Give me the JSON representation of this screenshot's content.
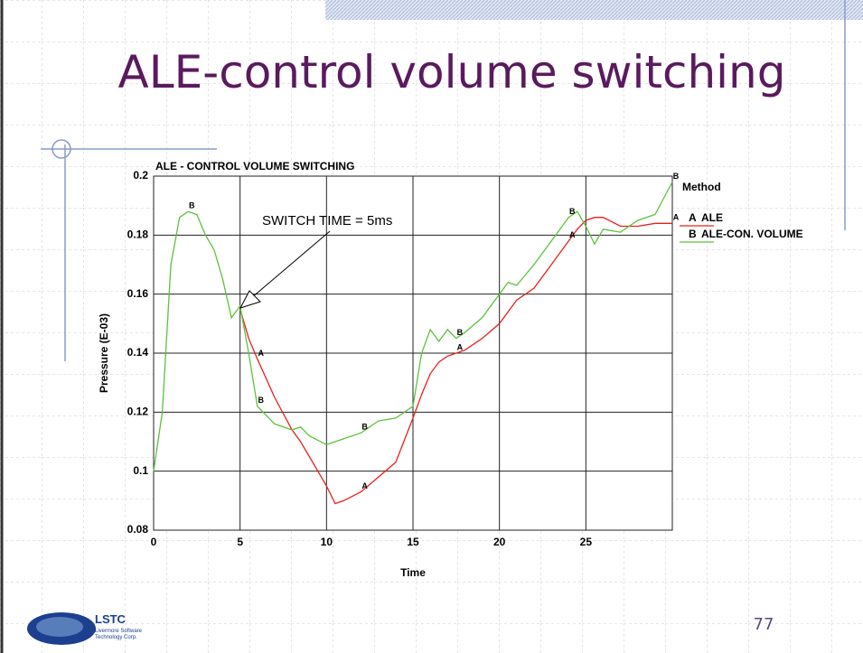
{
  "slide": {
    "title": "ALE-control volume switching",
    "page_number": "77",
    "logo": "LSTC",
    "logo_subtitle": [
      "Livermore Software",
      "Technology Corp."
    ]
  },
  "chart_data": {
    "type": "line",
    "title": "ALE - CONTROL VOLUME SWITCHING",
    "x_label": "Time",
    "y_label": "Pressure (E-03)",
    "legend_title": "Method",
    "annotation": "SWITCH TIME = 5ms",
    "x": [
      0,
      0.5,
      1,
      1.5,
      2,
      2.5,
      3,
      3.5,
      4,
      4.5,
      5,
      5.5,
      6,
      7,
      8,
      8.5,
      9,
      10,
      10.5,
      11,
      12,
      13,
      14,
      15,
      15.5,
      16,
      16.5,
      17,
      17.5,
      18,
      19,
      20,
      20.5,
      21,
      22,
      23,
      24,
      24.5,
      25,
      25.5,
      26,
      27,
      28,
      29,
      30
    ],
    "series": [
      {
        "name": "ALE",
        "symbol": "A",
        "color": "#e8201c",
        "values": [
          null,
          null,
          null,
          null,
          null,
          null,
          null,
          null,
          null,
          null,
          0.155,
          0.145,
          0.138,
          0.125,
          0.114,
          0.11,
          0.105,
          0.095,
          0.089,
          0.09,
          0.093,
          0.098,
          0.103,
          0.118,
          0.126,
          0.133,
          0.137,
          0.139,
          0.14,
          0.141,
          0.145,
          0.15,
          0.154,
          0.158,
          0.162,
          0.17,
          0.178,
          0.182,
          0.185,
          0.186,
          0.186,
          0.183,
          0.183,
          0.184,
          0.184
        ]
      },
      {
        "name": "ALE-CON. VOLUME",
        "symbol": "B",
        "color": "#5cc23a",
        "values": [
          0.1,
          0.12,
          0.17,
          0.186,
          0.188,
          0.187,
          0.18,
          0.175,
          0.165,
          0.152,
          0.156,
          0.14,
          0.122,
          0.116,
          0.114,
          0.115,
          0.112,
          0.109,
          0.11,
          0.111,
          0.113,
          0.117,
          0.118,
          0.122,
          0.14,
          0.148,
          0.144,
          0.148,
          0.145,
          0.147,
          0.152,
          0.16,
          0.164,
          0.163,
          0.17,
          0.178,
          0.186,
          0.188,
          0.183,
          0.177,
          0.182,
          0.181,
          0.185,
          0.187,
          0.198
        ]
      }
    ],
    "xlim": [
      0,
      30
    ],
    "xticks": [
      0,
      5,
      10,
      15,
      20,
      25
    ],
    "ylim": [
      0.08,
      0.2
    ],
    "yticks": [
      0.08,
      0.1,
      0.12,
      0.14,
      0.16,
      0.18,
      0.2
    ],
    "grid": true
  }
}
